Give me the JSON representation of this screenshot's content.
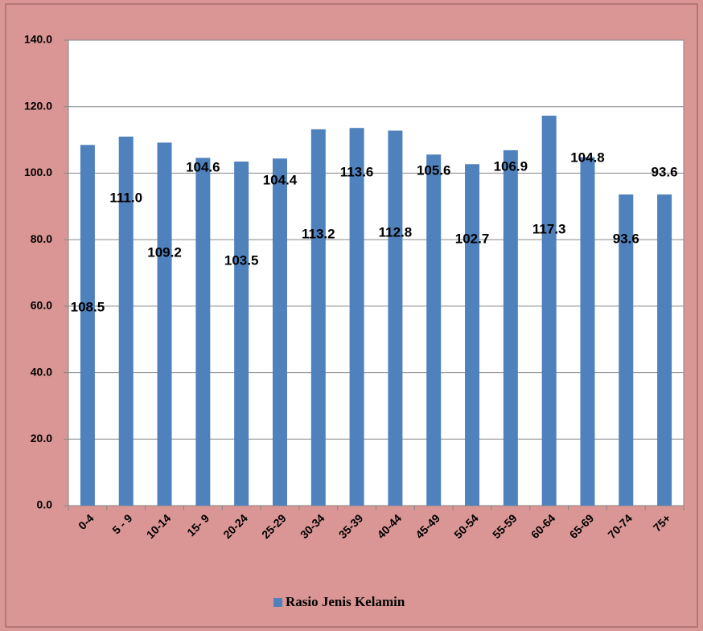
{
  "chart_data": {
    "type": "bar",
    "categories": [
      "0-4",
      "5 - 9",
      "10-14",
      "15- 9",
      "20-24",
      "25-29",
      "30-34",
      "35-39",
      "40-44",
      "45-49",
      "50-54",
      "55-59",
      "60-64",
      "65-69",
      "70-74",
      "75+"
    ],
    "series": [
      {
        "name": "Rasio Jenis Kelamin",
        "color": "#4f81bd",
        "values": [
          108.5,
          111.0,
          109.2,
          104.6,
          103.5,
          104.4,
          113.2,
          113.6,
          112.8,
          105.6,
          102.7,
          106.9,
          117.3,
          104.8,
          93.6,
          93.6
        ],
        "value_labels": [
          "108.5",
          "111.0",
          "109.2",
          "104.6",
          "103.5",
          "104.4",
          "113.2",
          "113.6",
          "112.8",
          "105.6",
          "102.7",
          "106.9",
          "117.3",
          "104.8",
          "93.6",
          "93.6"
        ]
      }
    ],
    "ylim": [
      0,
      140
    ],
    "yticks": [
      {
        "value": 0,
        "label": "0.0"
      },
      {
        "value": 20,
        "label": "20.0"
      },
      {
        "value": 40,
        "label": "40.0"
      },
      {
        "value": 60,
        "label": "60.0"
      },
      {
        "value": 80,
        "label": "80.0"
      },
      {
        "value": 100,
        "label": "100.0"
      },
      {
        "value": 120,
        "label": "120.0"
      },
      {
        "value": 140,
        "label": "140.0"
      }
    ],
    "grid": true,
    "legend": "bottom"
  }
}
